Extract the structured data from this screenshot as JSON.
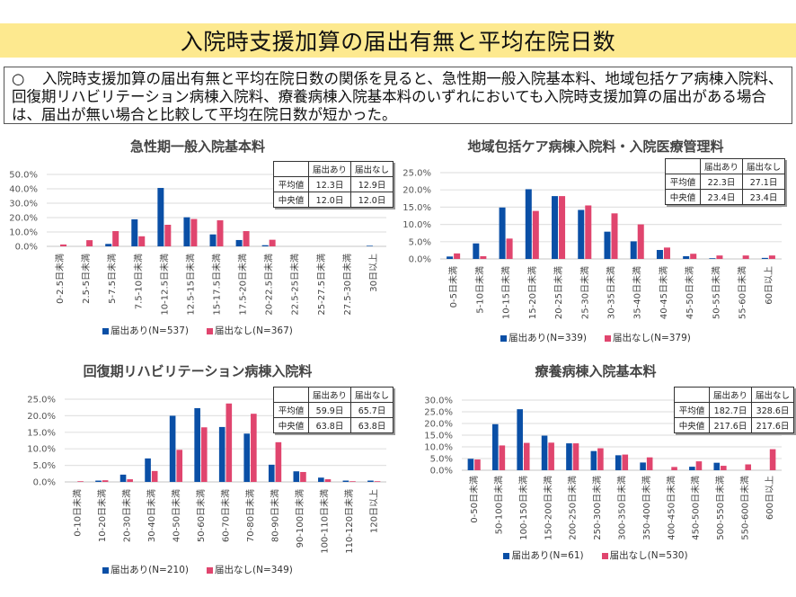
{
  "page": {
    "title": "入院時支援加算の届出有無と平均在院日数",
    "summary_bullet": "○",
    "summary_text": "入院時支援加算の届出有無と平均在院日数の関係を見ると、急性期一般入院基本料、地域包括ケア病棟入院料、回復期リハビリテーション病棟入院料、療養病棟入院基本料のいずれにおいても入院時支援加算の届出がある場合は、届出が無い場合と比較して平均在院日数が短かった。"
  },
  "colors": {
    "with": "#0a4fa6",
    "without": "#e0456e",
    "grid": "#e2e2e2"
  },
  "chart_data": [
    {
      "type": "bar",
      "title": "急性期一般入院基本料",
      "xlabel": "",
      "ylabel": "",
      "ylim": [
        0,
        50
      ],
      "ytick_step": 10,
      "ytick_format": "0.0%",
      "grid": true,
      "legend": "bottom",
      "categories": [
        "0-2.5日未満",
        "2.5-5日未満",
        "5-7.5日未満",
        "7.5-10日未満",
        "10-12.5日未満",
        "12.5-15日未満",
        "15-17.5日未満",
        "17.5-20日未満",
        "20-22.5日未満",
        "22.5-25日未満",
        "25-27.5日未満",
        "27.5-30日未満",
        "30日以上"
      ],
      "series": [
        {
          "name": "届出あり(N=537)",
          "values": [
            0,
            0,
            1.7,
            18.8,
            40.6,
            20.2,
            8.3,
            4.4,
            0.8,
            0,
            0,
            0,
            0.4
          ]
        },
        {
          "name": "届出なし(N=367)",
          "values": [
            1.3,
            4.3,
            10.6,
            7.0,
            15.0,
            19.0,
            18.1,
            10.6,
            4.6,
            0,
            0,
            0,
            0
          ]
        }
      ],
      "table": {
        "headers": [
          "",
          "届出あり",
          "届出なし"
        ],
        "rows": [
          [
            "平均値",
            "12.3日",
            "12.9日"
          ],
          [
            "中央値",
            "12.0日",
            "12.0日"
          ]
        ]
      }
    },
    {
      "type": "bar",
      "title": "地域包括ケア病棟入院料・入院医療管理料",
      "xlabel": "",
      "ylabel": "",
      "ylim": [
        0,
        25
      ],
      "ytick_step": 5,
      "ytick_format": "0.0%",
      "grid": true,
      "legend": "bottom",
      "categories": [
        "0-5日未満",
        "5-10日未満",
        "10-15日未満",
        "15-20日未満",
        "20-25日未満",
        "25-30日未満",
        "30-35日未満",
        "35-40日未満",
        "40-45日未満",
        "45-50日未満",
        "50-55日未満",
        "55-60日未満",
        "60日以上"
      ],
      "series": [
        {
          "name": "届出あり(N=339)",
          "values": [
            0.7,
            4.5,
            14.9,
            20.2,
            18.2,
            14.2,
            7.9,
            5.1,
            2.6,
            0.8,
            0.2,
            0,
            0.3
          ]
        },
        {
          "name": "届出なし(N=379)",
          "values": [
            1.6,
            0.8,
            5.9,
            13.9,
            18.2,
            15.5,
            13.2,
            10.0,
            3.3,
            1.5,
            1.0,
            1.0,
            1.0
          ]
        }
      ],
      "table": {
        "headers": [
          "",
          "届出あり",
          "届出なし"
        ],
        "rows": [
          [
            "平均値",
            "22.3日",
            "27.1日"
          ],
          [
            "中央値",
            "23.4日",
            "23.4日"
          ]
        ]
      }
    },
    {
      "type": "bar",
      "title": "回復期リハビリテーション病棟入院料",
      "xlabel": "",
      "ylabel": "",
      "ylim": [
        0,
        25
      ],
      "ytick_step": 5,
      "ytick_format": "0.0%",
      "grid": true,
      "legend": "bottom",
      "categories": [
        "0-10日未満",
        "10-20日未満",
        "20-30日未満",
        "30-40日未満",
        "40-50日未満",
        "50-60日未満",
        "60-70日未満",
        "70-80日未満",
        "80-90日未満",
        "90-100日未満",
        "100-110日未満",
        "110-120日未満",
        "120日以上"
      ],
      "series": [
        {
          "name": "届出あり(N=210)",
          "values": [
            0,
            0.4,
            2.2,
            7.1,
            20.0,
            22.3,
            16.6,
            14.6,
            5.2,
            3.2,
            1.3,
            0.4,
            0.4
          ]
        },
        {
          "name": "届出なし(N=349)",
          "values": [
            0.2,
            0.5,
            0.8,
            3.3,
            9.7,
            16.5,
            23.7,
            20.6,
            12.0,
            3.0,
            0.8,
            0.2,
            0.2
          ]
        }
      ],
      "table": {
        "headers": [
          "",
          "届出あり",
          "届出なし"
        ],
        "rows": [
          [
            "平均値",
            "59.9日",
            "65.7日"
          ],
          [
            "中央値",
            "63.8日",
            "63.8日"
          ]
        ]
      }
    },
    {
      "type": "bar",
      "title": "療養病棟入院基本料",
      "xlabel": "",
      "ylabel": "",
      "ylim": [
        0,
        30
      ],
      "ytick_step": 5,
      "ytick_format": "0.0%",
      "grid": true,
      "legend": "bottom",
      "categories": [
        "0-50日未満",
        "50-100日未満",
        "100-150日未満",
        "150-200日未満",
        "200-250日未満",
        "250-300日未満",
        "300-350日未満",
        "350-400日未満",
        "400-450日未満",
        "450-500日未満",
        "500-550日未満",
        "550-600日未満",
        "600日以上"
      ],
      "series": [
        {
          "name": "届出あり(N=61)",
          "values": [
            4.9,
            19.7,
            26.1,
            14.8,
            11.5,
            8.2,
            6.4,
            3.3,
            0,
            1.5,
            3.2,
            0,
            0
          ]
        },
        {
          "name": "届出なし(N=530)",
          "values": [
            4.6,
            10.6,
            11.7,
            11.8,
            11.5,
            9.4,
            6.7,
            5.5,
            1.4,
            3.8,
            1.9,
            2.5,
            9.0
          ]
        }
      ],
      "table": {
        "headers": [
          "",
          "届出あり",
          "届出なし"
        ],
        "rows": [
          [
            "平均値",
            "182.7日",
            "328.6日"
          ],
          [
            "中央値",
            "217.6日",
            "217.6日"
          ]
        ]
      }
    }
  ]
}
